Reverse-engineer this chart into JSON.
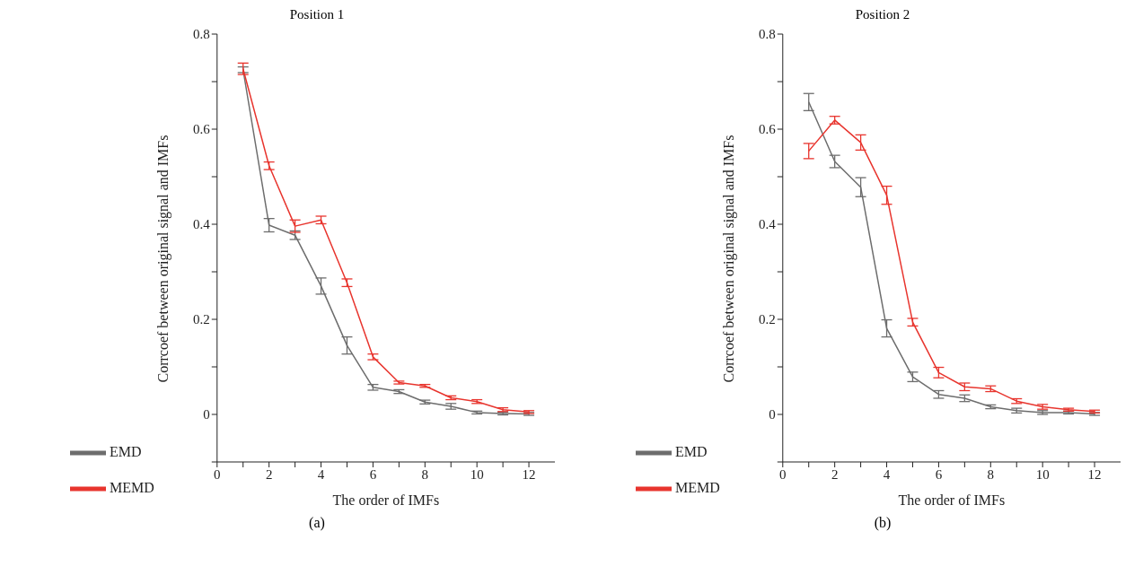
{
  "chart_data": [
    {
      "type": "line",
      "title": "Position 1",
      "xlabel": "The order of IMFs",
      "ylabel": "Corrcoef between original signal and IMFs",
      "annotations": [
        "(a)"
      ],
      "x": [
        1,
        2,
        3,
        4,
        5,
        6,
        7,
        8,
        9,
        10,
        11,
        12
      ],
      "series": [
        {
          "name": "EMD",
          "color": "#6d6d6d",
          "values": [
            0.725,
            0.398,
            0.377,
            0.27,
            0.145,
            0.057,
            0.048,
            0.026,
            0.017,
            0.004,
            0.002,
            0.001
          ],
          "errors": [
            0.006,
            0.014,
            0.009,
            0.017,
            0.018,
            0.006,
            0.004,
            0.004,
            0.006,
            0.003,
            0.003,
            0.003
          ]
        },
        {
          "name": "MEMD",
          "color": "#e8352e",
          "values": [
            0.727,
            0.523,
            0.396,
            0.409,
            0.277,
            0.121,
            0.067,
            0.06,
            0.035,
            0.027,
            0.01,
            0.005
          ],
          "errors": [
            0.012,
            0.008,
            0.013,
            0.008,
            0.008,
            0.006,
            0.003,
            0.003,
            0.004,
            0.004,
            0.004,
            0.003
          ]
        }
      ],
      "xlim": [
        0,
        13
      ],
      "xticks": [
        0,
        {
          "value": 1,
          "label": null
        },
        2,
        {
          "value": 3,
          "label": null
        },
        4,
        {
          "value": 5,
          "label": null
        },
        6,
        {
          "value": 7,
          "label": null
        },
        8,
        {
          "value": 9,
          "label": null
        },
        10,
        {
          "value": 11,
          "label": null
        },
        12
      ],
      "ylim": [
        -0.1,
        0.8
      ],
      "yticks": [
        {
          "value": -0.1,
          "label": null
        },
        0,
        {
          "value": 0.1,
          "label": null
        },
        0.2,
        {
          "value": 0.3,
          "label": null
        },
        0.4,
        {
          "value": 0.5,
          "label": null
        },
        0.6,
        {
          "value": 0.7,
          "label": null
        },
        0.8
      ],
      "legend": "bottom left",
      "marker": "none",
      "line_style": "solid",
      "grid": false
    },
    {
      "type": "line",
      "title": "Position 2",
      "xlabel": "The order of IMFs",
      "ylabel": "Corrcoef between original signal and IMFs",
      "annotations": [
        "(b)"
      ],
      "x": [
        1,
        2,
        3,
        4,
        5,
        6,
        7,
        8,
        9,
        10,
        11,
        12
      ],
      "series": [
        {
          "name": "EMD",
          "color": "#6d6d6d",
          "values": [
            0.657,
            0.532,
            0.478,
            0.181,
            0.079,
            0.042,
            0.034,
            0.016,
            0.008,
            0.004,
            0.004,
            0.001
          ],
          "errors": [
            0.018,
            0.013,
            0.02,
            0.018,
            0.01,
            0.008,
            0.007,
            0.004,
            0.005,
            0.004,
            0.003,
            0.003
          ]
        },
        {
          "name": "MEMD",
          "color": "#e8352e",
          "values": [
            0.554,
            0.619,
            0.572,
            0.461,
            0.194,
            0.088,
            0.058,
            0.054,
            0.028,
            0.016,
            0.01,
            0.006
          ],
          "errors": [
            0.016,
            0.008,
            0.016,
            0.019,
            0.008,
            0.011,
            0.008,
            0.006,
            0.005,
            0.005,
            0.003,
            0.003
          ]
        }
      ],
      "xlim": [
        0,
        13
      ],
      "xticks": [
        0,
        {
          "value": 1,
          "label": null
        },
        2,
        {
          "value": 3,
          "label": null
        },
        4,
        {
          "value": 5,
          "label": null
        },
        6,
        {
          "value": 7,
          "label": null
        },
        8,
        {
          "value": 9,
          "label": null
        },
        10,
        {
          "value": 11,
          "label": null
        },
        12
      ],
      "ylim": [
        -0.1,
        0.8
      ],
      "yticks": [
        {
          "value": -0.1,
          "label": null
        },
        0,
        {
          "value": 0.1,
          "label": null
        },
        0.2,
        {
          "value": 0.3,
          "label": null
        },
        0.4,
        {
          "value": 0.5,
          "label": null
        },
        0.6,
        {
          "value": 0.7,
          "label": null
        },
        0.8
      ],
      "legend": "bottom left",
      "marker": "none",
      "line_style": "solid",
      "grid": false
    }
  ]
}
